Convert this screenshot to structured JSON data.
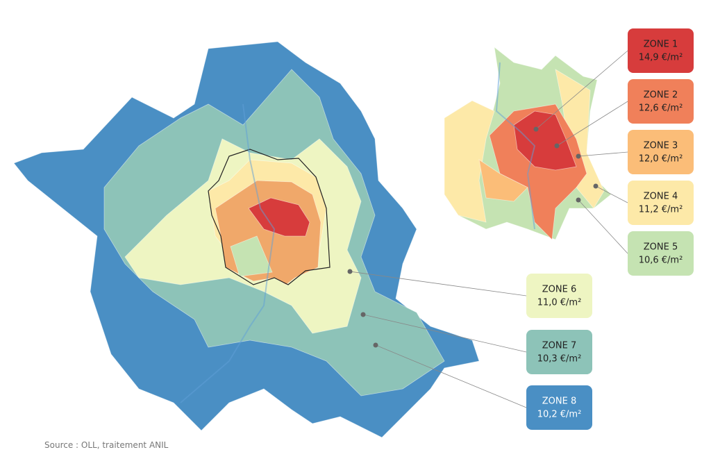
{
  "zones": [
    {
      "name": "ZONE 1",
      "price": "14,9 €/m²"
    },
    {
      "name": "ZONE 2",
      "price": "12,6 €/m²"
    },
    {
      "name": "ZONE 3",
      "price": "12,0 €/m²"
    },
    {
      "name": "ZONE 4",
      "price": "11,2 €/m²"
    },
    {
      "name": "ZONE 5",
      "price": "10,6 €/m²"
    },
    {
      "name": "ZONE 6",
      "price": "11,0 €/m²"
    },
    {
      "name": "ZONE 7",
      "price": "10,3 €/m²"
    },
    {
      "name": "ZONE 8",
      "price": "10,2 €/m²"
    }
  ],
  "source": "Source : OLL, traitement ANIL"
}
